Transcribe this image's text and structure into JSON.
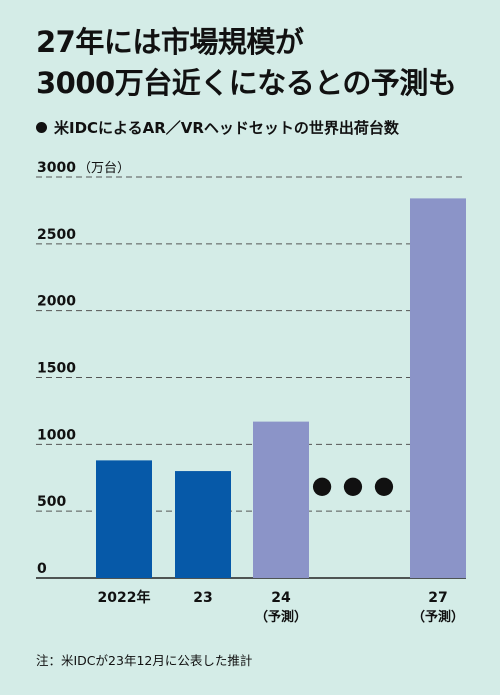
{
  "header": {
    "title_line1": "27年には市場規模が",
    "title_line2": "3000万台近くになるとの予測も",
    "subtitle": "米IDCによるAR／VRヘッドセットの世界出荷台数"
  },
  "chart_data": {
    "type": "bar",
    "unit_label": "（万台）",
    "categories": [
      "2022年",
      "23",
      "24",
      "27"
    ],
    "category_sublabels": [
      "",
      "",
      "（予測）",
      "（予測）"
    ],
    "values": [
      880,
      800,
      1170,
      2840
    ],
    "forecast": [
      false,
      false,
      true,
      true
    ],
    "colors": {
      "actual": "#0659a8",
      "forecast": "#8b94c8",
      "grid": "#555555"
    },
    "ylim": [
      0,
      3000
    ],
    "yticks": [
      0,
      500,
      1000,
      1500,
      2000,
      2500,
      3000
    ],
    "gap_marker": "●●●",
    "grid": true,
    "xlabel": "",
    "ylabel": ""
  },
  "footer": {
    "note": "注：米IDCが23年12月に公表した推計"
  }
}
